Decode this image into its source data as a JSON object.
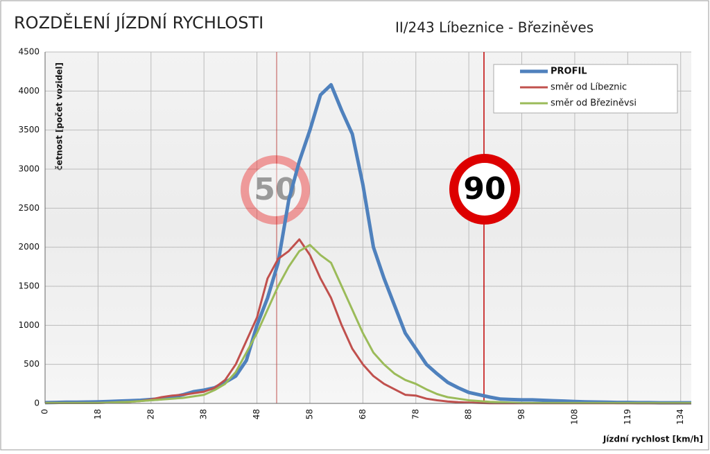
{
  "chart_data": {
    "type": "line",
    "title": "ROZDĚLENÍ JÍZDNÍ RYCHLOSTI",
    "subtitle": "II/243 Líbeznice - Březiněves",
    "ylabel": "četnost [počet vozidel]",
    "xlabel": "Jízdní rychlost [km/h]",
    "annotations": [
      "50",
      "90"
    ],
    "categories": [
      "0",
      null,
      null,
      null,
      null,
      "18",
      null,
      null,
      null,
      null,
      "28",
      null,
      null,
      null,
      null,
      "38",
      null,
      null,
      null,
      null,
      "48",
      null,
      null,
      null,
      null,
      "58",
      null,
      null,
      null,
      null,
      "68",
      null,
      null,
      null,
      null,
      "78",
      null,
      null,
      null,
      null,
      "88",
      null,
      null,
      null,
      null,
      "98",
      null,
      null,
      null,
      null,
      "108",
      null,
      null,
      null,
      null,
      "119",
      null,
      null,
      null,
      null,
      "134",
      null
    ],
    "ylim": [
      0,
      4500
    ],
    "yticks": [
      0,
      500,
      1000,
      1500,
      2000,
      2500,
      3000,
      3500,
      4000,
      4500
    ],
    "grid": true,
    "legend": "top-right",
    "series": [
      {
        "name": "PROFIL",
        "color": "#4f81bd",
        "values": [
          10,
          12,
          15,
          15,
          18,
          20,
          25,
          30,
          35,
          40,
          50,
          60,
          80,
          110,
          150,
          170,
          200,
          270,
          350,
          550,
          1000,
          1350,
          1800,
          2600,
          3100,
          3500,
          3950,
          4080,
          3750,
          3450,
          2800,
          2000,
          1600,
          1250,
          900,
          700,
          500,
          380,
          270,
          200,
          140,
          110,
          80,
          55,
          50,
          45,
          45,
          40,
          35,
          30,
          25,
          20,
          18,
          15,
          12,
          12,
          10,
          10,
          8,
          8,
          8,
          8
        ]
      },
      {
        "name": "směr od Líbeznic",
        "color": "#c0504d",
        "values": [
          5,
          5,
          5,
          5,
          5,
          5,
          10,
          15,
          20,
          30,
          50,
          80,
          100,
          110,
          130,
          150,
          200,
          300,
          500,
          800,
          1100,
          1600,
          1850,
          1950,
          2100,
          1900,
          1600,
          1350,
          1000,
          700,
          500,
          350,
          250,
          180,
          110,
          100,
          60,
          40,
          25,
          15,
          10,
          5,
          3,
          3,
          3,
          3,
          3,
          3,
          3,
          3,
          3,
          3,
          3,
          3,
          3,
          3,
          3,
          3,
          3,
          3,
          3,
          3
        ]
      },
      {
        "name": "směr od Březiněvsi",
        "color": "#9bbb59",
        "values": [
          5,
          5,
          5,
          5,
          5,
          5,
          10,
          15,
          20,
          30,
          40,
          50,
          60,
          70,
          90,
          110,
          170,
          250,
          400,
          650,
          900,
          1200,
          1500,
          1750,
          1950,
          2030,
          1900,
          1800,
          1500,
          1200,
          900,
          650,
          500,
          380,
          300,
          250,
          180,
          120,
          80,
          60,
          40,
          30,
          20,
          15,
          10,
          5,
          5,
          5,
          5,
          5,
          5,
          5,
          5,
          5,
          5,
          5,
          5,
          5,
          5,
          5,
          5,
          5
        ]
      }
    ]
  }
}
